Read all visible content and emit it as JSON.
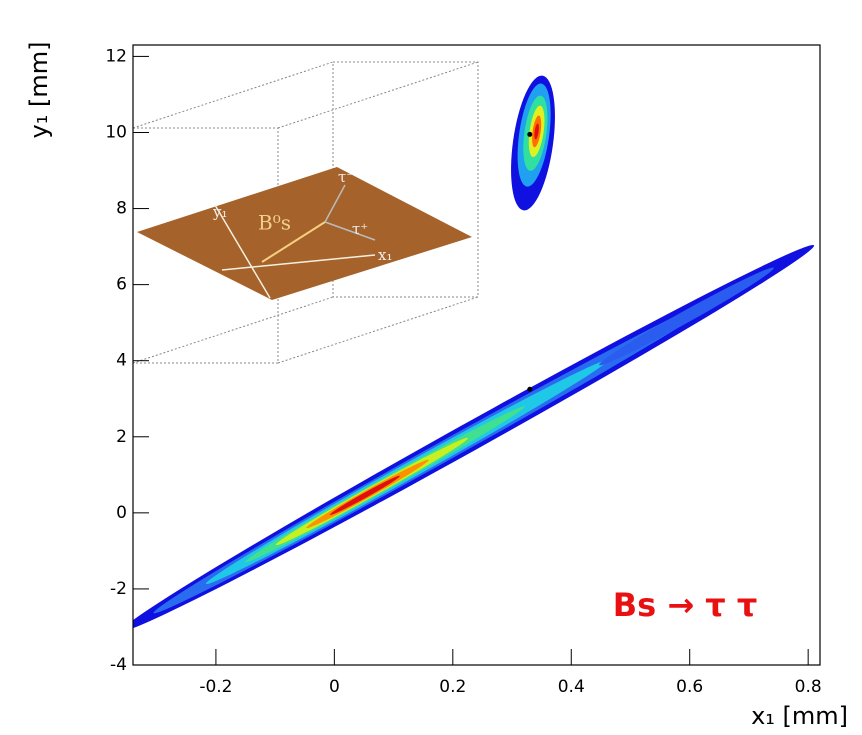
{
  "chart_data": {
    "type": "contour",
    "x_label": "x₁ [mm]",
    "y_label": "y₁ [mm]",
    "annotation": "Bs → τ τ",
    "xlim": [
      -0.34,
      0.82
    ],
    "ylim": [
      -4,
      12.3
    ],
    "xticks": [
      -0.2,
      0,
      0.2,
      0.4,
      0.6,
      0.8
    ],
    "yticks": [
      -4,
      -2,
      0,
      2,
      4,
      6,
      8,
      10,
      12
    ],
    "points": {
      "x": [
        0.33,
        0.33
      ],
      "y": [
        3.25,
        9.95
      ],
      "color": "#000000"
    }
  },
  "inset": {
    "labels": [
      "y₁",
      "B⁰s",
      "τ⁻",
      "τ⁺",
      "x₁"
    ]
  }
}
